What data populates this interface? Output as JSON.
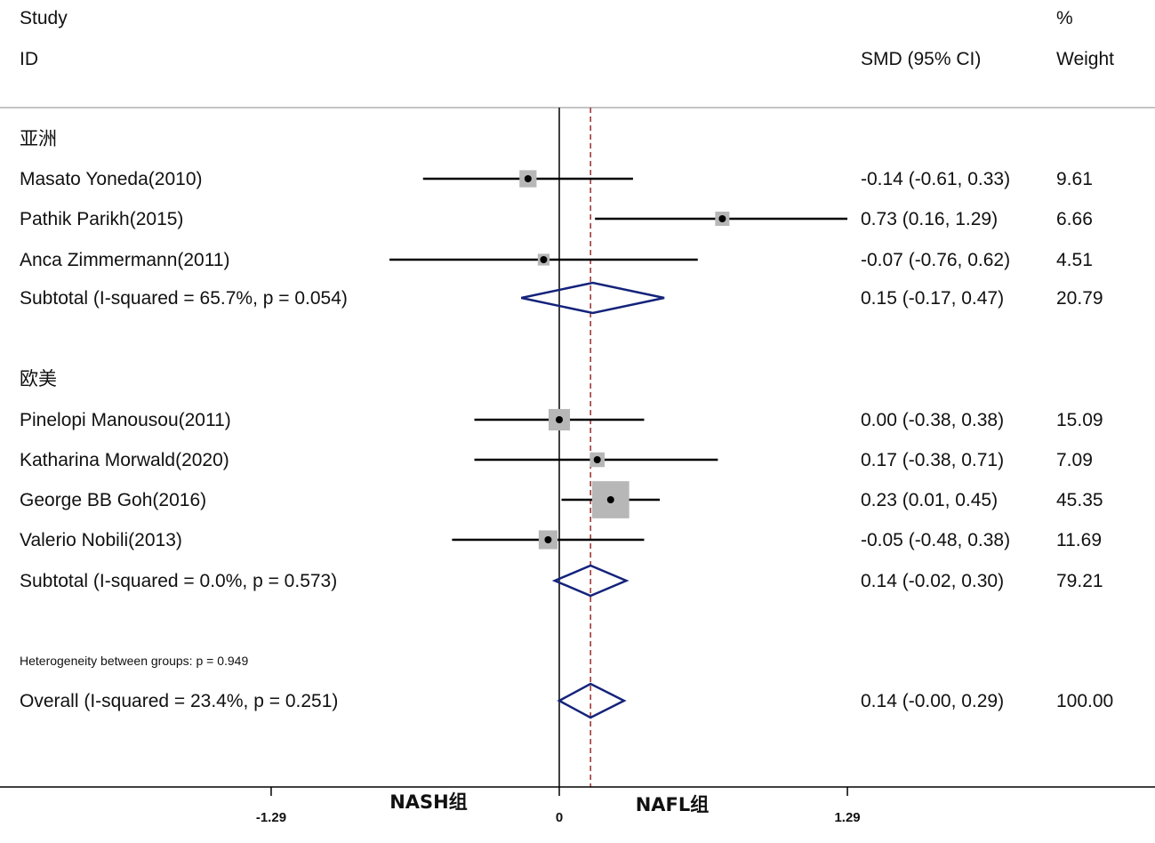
{
  "header": {
    "study": "Study",
    "id": "ID",
    "effect": "SMD (95% CI)",
    "percent": "%",
    "weight": "Weight"
  },
  "colors": {
    "ci_line": "#000000",
    "box": "#b7b7b7",
    "diamond": "#14237a",
    "ref_line": "#9b2c2c"
  },
  "chart_data": {
    "type": "forest",
    "measure": "SMD",
    "x_ticks": [
      -1.29,
      0,
      1.29
    ],
    "x_tick_labels": [
      "-1.29",
      "0",
      "1.29"
    ],
    "xlim": [
      -1.29,
      1.29
    ],
    "side_labels": {
      "left": "NASH组",
      "right": "NAFL组"
    },
    "overall_reference_line": 0.14,
    "heterogeneity_note": "Heterogeneity between groups: p = 0.949",
    "groups": [
      {
        "name": "亚洲",
        "studies": [
          {
            "label": "Masato Yoneda(2010)",
            "est": -0.14,
            "lo": -0.61,
            "hi": 0.33,
            "ci_text": "-0.14 (-0.61, 0.33)",
            "weight": 9.61,
            "weight_text": "9.61"
          },
          {
            "label": "Pathik Parikh(2015)",
            "est": 0.73,
            "lo": 0.16,
            "hi": 1.29,
            "ci_text": "0.73 (0.16, 1.29)",
            "weight": 6.66,
            "weight_text": "6.66"
          },
          {
            "label": "Anca Zimmermann(2011)",
            "est": -0.07,
            "lo": -0.76,
            "hi": 0.62,
            "ci_text": "-0.07 (-0.76, 0.62)",
            "weight": 4.51,
            "weight_text": "4.51"
          }
        ],
        "subtotal": {
          "label": "Subtotal  (I-squared = 65.7%, p = 0.054)",
          "est": 0.15,
          "lo": -0.17,
          "hi": 0.47,
          "ci_text": "0.15 (-0.17, 0.47)",
          "weight_text": "20.79"
        }
      },
      {
        "name": "欧美",
        "studies": [
          {
            "label": "Pinelopi Manousou(2011)",
            "est": 0.0,
            "lo": -0.38,
            "hi": 0.38,
            "ci_text": "0.00 (-0.38, 0.38)",
            "weight": 15.09,
            "weight_text": "15.09"
          },
          {
            "label": "Katharina Morwald(2020)",
            "est": 0.17,
            "lo": -0.38,
            "hi": 0.71,
            "ci_text": "0.17 (-0.38, 0.71)",
            "weight": 7.09,
            "weight_text": "7.09"
          },
          {
            "label": "George BB Goh(2016)",
            "est": 0.23,
            "lo": 0.01,
            "hi": 0.45,
            "ci_text": "0.23 (0.01, 0.45)",
            "weight": 45.35,
            "weight_text": "45.35"
          },
          {
            "label": "Valerio Nobili(2013)",
            "est": -0.05,
            "lo": -0.48,
            "hi": 0.38,
            "ci_text": "-0.05 (-0.48, 0.38)",
            "weight": 11.69,
            "weight_text": "11.69"
          }
        ],
        "subtotal": {
          "label": "Subtotal  (I-squared = 0.0%, p = 0.573)",
          "est": 0.14,
          "lo": -0.02,
          "hi": 0.3,
          "ci_text": "0.14 (-0.02, 0.30)",
          "weight_text": "79.21"
        }
      }
    ],
    "overall": {
      "label": "Overall  (I-squared = 23.4%, p = 0.251)",
      "est": 0.14,
      "lo": -0.0,
      "hi": 0.29,
      "ci_text": "0.14 (-0.00, 0.29)",
      "weight_text": "100.00"
    }
  }
}
